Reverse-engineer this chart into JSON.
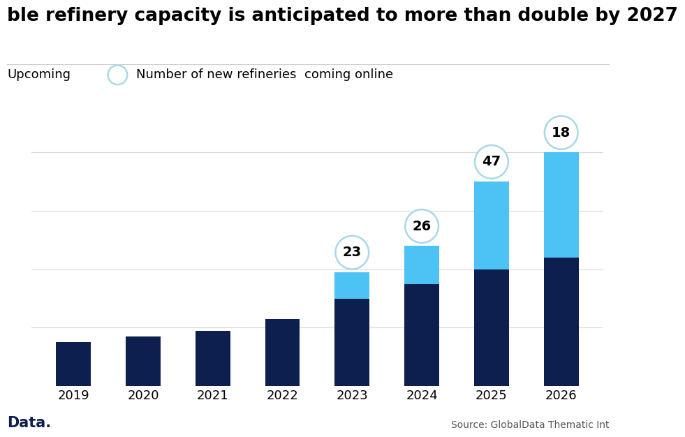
{
  "years": [
    "2019",
    "2020",
    "2021",
    "2022",
    "2023",
    "2024",
    "2025",
    "2026"
  ],
  "active_values": [
    15,
    17,
    19,
    23,
    30,
    35,
    40,
    44
  ],
  "upcoming_values": [
    0,
    0,
    0,
    0,
    9,
    13,
    30,
    36
  ],
  "bubble_labels": [
    null,
    null,
    null,
    null,
    23,
    26,
    47,
    18
  ],
  "dark_blue": "#0d1f4e",
  "light_blue": "#4dc3f5",
  "bubble_edge_color": "#a8d8ea",
  "title": "ble refinery capacity is anticipated to more than double by 2027",
  "legend_upcoming_label": "Upcoming",
  "legend_bubble_label": "Number of new refineries  coming online",
  "source_text": "Source: GlobalData Thematic Int",
  "brand_text": "Data.",
  "background_color": "#ffffff",
  "title_fontsize": 19,
  "tick_fontsize": 13,
  "legend_fontsize": 13,
  "bubble_fontsize": 14,
  "source_fontsize": 10
}
